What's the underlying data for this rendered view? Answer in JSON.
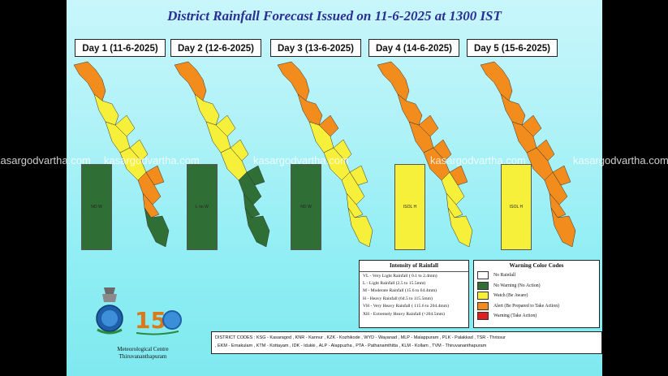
{
  "title": "District Rainfall Forecast Issued on  11-6-2025 at 1300 IST",
  "days": [
    {
      "label": "Day 1 (11-6-2025)",
      "bar_label": "NO W",
      "bar_color": "#2f6e34"
    },
    {
      "label": "Day 2 (12-6-2025)",
      "bar_label": "L no W",
      "bar_color": "#2f6e34"
    },
    {
      "label": "Day 3 (13-6-2025)",
      "bar_label": "NO W",
      "bar_color": "#2f6e34"
    },
    {
      "label": "Day 4 (14-6-2025)",
      "bar_label": "ISOL H",
      "bar_color": "#f6f03b"
    },
    {
      "label": "Day 5 (15-6-2025)",
      "bar_label": "ISOL H",
      "bar_color": "#f6f03b"
    }
  ],
  "watermark": "kasargodvartha.com",
  "intensity": {
    "title": "Intensity of Rainfall",
    "rows": [
      "VL - Very Light Rainfall ( 0.1 to 2.4mm)",
      "L  - Light Rainfall (2.5 to 15.5mm)",
      "M  - Moderate Rainfall (15.6 to 64.4mm)",
      "H  - Heavy Rainfall (64.5 to 115.5mm)",
      "VH - Very Heavy Rainfall ( 115.6 to 204.4mm)",
      "XH - Extremely Heavy Rainfall (>204.5mm)"
    ]
  },
  "warning_codes": {
    "title": "Warning Color Codes",
    "rows": [
      {
        "label": "No Rainfall",
        "color": "#ffffff"
      },
      {
        "label": "No Warning (No Action)",
        "color": "#2f6e34"
      },
      {
        "label": "Watch (Be Aware)",
        "color": "#f6f03b"
      },
      {
        "label": "Alert (Be Prepared to Take Action)",
        "color": "#f28c1c"
      },
      {
        "label": "Warning (Take Action)",
        "color": "#e02020"
      }
    ]
  },
  "district_codes": {
    "line1": "DISTRICT CODES : KSG - Kasaragod , KNR - Kannur , KZK - Kozhikode , WYD - Wayanad , MLP - Malappuram , PLK - Palakkad , TSR - Thrissur",
    "line2": ", EKM - Ernakulam , KTM - Kottayam , IDK - Idukki , ALP - Alappuzha ,     PTA - Pathanamthitta , KLM - Kollam , TVM - Thiruvananthapuram"
  },
  "org": {
    "line1": "Meteorological Centre",
    "line2": "Thiruvananthapuram"
  },
  "colors": {
    "orange": "#f28c1c",
    "yellow": "#f6f03b",
    "green": "#2f6e34",
    "panel": "#aef2f7"
  }
}
